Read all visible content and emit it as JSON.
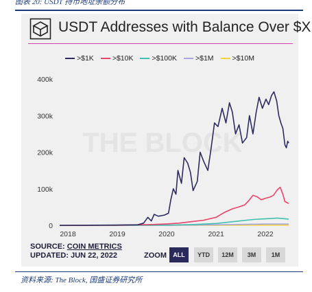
{
  "doc_caption": "图表 20:  USDT 持币地址余额分布",
  "source_note": "资料来源:  The Block, 国盛证券研究所",
  "header": {
    "title": "USDT Addresses with Balance Over $X",
    "logo_icon": "the-block-cube-icon"
  },
  "watermark": "THE BLOCK",
  "footer": {
    "source_prefix": "SOURCE: ",
    "source_link": "COIN METRICS",
    "updated": "UPDATED: JUN 22, 2022"
  },
  "zoom": {
    "label": "ZOOM",
    "buttons": [
      {
        "label": "ALL",
        "active": true
      },
      {
        "label": "YTD",
        "active": false
      },
      {
        "label": "12M",
        "active": false
      },
      {
        "label": "3M",
        "active": false
      },
      {
        "label": "1M",
        "active": false
      }
    ]
  },
  "chart_data": {
    "type": "line",
    "title": "USDT Addresses with Balance Over $X",
    "legend_position": "top",
    "grid": false,
    "x_range": [
      "2017-11-01",
      "2022-06-22"
    ],
    "ylim": [
      0,
      400000
    ],
    "y_ticks": [
      0,
      100000,
      200000,
      300000,
      400000
    ],
    "y_tick_labels": [
      "0",
      "100k",
      "200k",
      "300k",
      "400k"
    ],
    "x_ticks": [
      "2018-01-01",
      "2019-01-01",
      "2020-01-01",
      "2021-01-01",
      "2022-01-01"
    ],
    "x_tick_labels": [
      "2018",
      "2019",
      "2020",
      "2021",
      "2022"
    ],
    "series": [
      {
        "name": ">$1K",
        "color": "#2c2a5e",
        "points": [
          [
            "2017-11-01",
            0
          ],
          [
            "2018-06-01",
            300
          ],
          [
            "2019-01-01",
            800
          ],
          [
            "2019-06-01",
            1500
          ],
          [
            "2019-07-15",
            6000
          ],
          [
            "2019-08-15",
            22000
          ],
          [
            "2019-09-10",
            12000
          ],
          [
            "2019-10-01",
            30000
          ],
          [
            "2019-11-01",
            25000
          ],
          [
            "2019-12-15",
            28000
          ],
          [
            "2020-01-15",
            33000
          ],
          [
            "2020-02-01",
            70000
          ],
          [
            "2020-02-20",
            100000
          ],
          [
            "2020-03-10",
            85000
          ],
          [
            "2020-03-25",
            150000
          ],
          [
            "2020-04-20",
            115000
          ],
          [
            "2020-05-10",
            185000
          ],
          [
            "2020-06-05",
            170000
          ],
          [
            "2020-06-25",
            145000
          ],
          [
            "2020-07-15",
            95000
          ],
          [
            "2020-08-15",
            120000
          ],
          [
            "2020-09-05",
            200000
          ],
          [
            "2020-10-01",
            175000
          ],
          [
            "2020-11-01",
            150000
          ],
          [
            "2020-11-25",
            210000
          ],
          [
            "2020-12-20",
            280000
          ],
          [
            "2021-01-15",
            270000
          ],
          [
            "2021-02-15",
            320000
          ],
          [
            "2021-03-15",
            280000
          ],
          [
            "2021-04-10",
            335000
          ],
          [
            "2021-05-01",
            310000
          ],
          [
            "2021-05-25",
            250000
          ],
          [
            "2021-06-20",
            275000
          ],
          [
            "2021-07-15",
            225000
          ],
          [
            "2021-08-15",
            240000
          ],
          [
            "2021-09-05",
            300000
          ],
          [
            "2021-10-01",
            250000
          ],
          [
            "2021-10-25",
            310000
          ],
          [
            "2021-11-15",
            350000
          ],
          [
            "2021-12-10",
            320000
          ],
          [
            "2022-01-05",
            345000
          ],
          [
            "2022-01-25",
            330000
          ],
          [
            "2022-02-15",
            355000
          ],
          [
            "2022-03-05",
            365000
          ],
          [
            "2022-03-25",
            340000
          ],
          [
            "2022-04-10",
            300000
          ],
          [
            "2022-04-25",
            280000
          ],
          [
            "2022-05-10",
            265000
          ],
          [
            "2022-05-25",
            220000
          ],
          [
            "2022-06-05",
            212000
          ],
          [
            "2022-06-15",
            230000
          ],
          [
            "2022-06-22",
            225000
          ]
        ]
      },
      {
        "name": ">$10K",
        "color": "#e8426a",
        "points": [
          [
            "2017-11-01",
            0
          ],
          [
            "2019-01-01",
            300
          ],
          [
            "2019-10-01",
            2500
          ],
          [
            "2020-01-01",
            4000
          ],
          [
            "2020-04-01",
            6000
          ],
          [
            "2020-07-01",
            10000
          ],
          [
            "2020-10-01",
            14000
          ],
          [
            "2021-01-01",
            22000
          ],
          [
            "2021-03-01",
            35000
          ],
          [
            "2021-05-01",
            45000
          ],
          [
            "2021-06-15",
            50000
          ],
          [
            "2021-08-01",
            56000
          ],
          [
            "2021-09-01",
            68000
          ],
          [
            "2021-10-01",
            82000
          ],
          [
            "2021-11-01",
            78000
          ],
          [
            "2021-12-01",
            70000
          ],
          [
            "2022-01-01",
            74000
          ],
          [
            "2022-02-01",
            77000
          ],
          [
            "2022-03-01",
            82000
          ],
          [
            "2022-04-01",
            98000
          ],
          [
            "2022-04-20",
            104000
          ],
          [
            "2022-05-10",
            85000
          ],
          [
            "2022-05-25",
            65000
          ],
          [
            "2022-06-22",
            60000
          ]
        ]
      },
      {
        "name": ">$100K",
        "color": "#3fbfb0",
        "points": [
          [
            "2017-11-01",
            0
          ],
          [
            "2020-01-01",
            500
          ],
          [
            "2020-07-01",
            2000
          ],
          [
            "2021-01-01",
            5000
          ],
          [
            "2021-06-01",
            11000
          ],
          [
            "2021-10-01",
            16000
          ],
          [
            "2022-01-01",
            18000
          ],
          [
            "2022-04-01",
            20000
          ],
          [
            "2022-06-22",
            17000
          ]
        ]
      },
      {
        "name": ">$1M",
        "color": "#a9a6dc",
        "points": [
          [
            "2017-11-01",
            0
          ],
          [
            "2020-01-01",
            200
          ],
          [
            "2021-01-01",
            1500
          ],
          [
            "2022-01-01",
            3500
          ],
          [
            "2022-06-22",
            3500
          ]
        ]
      },
      {
        "name": ">$10M",
        "color": "#f5d23a",
        "points": [
          [
            "2017-11-01",
            0
          ],
          [
            "2021-01-01",
            300
          ],
          [
            "2022-06-22",
            800
          ]
        ]
      }
    ]
  }
}
